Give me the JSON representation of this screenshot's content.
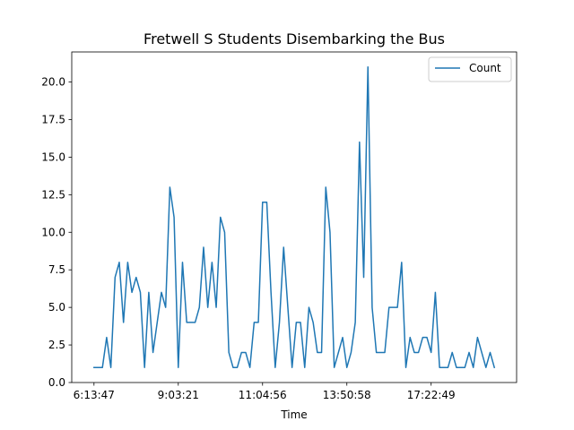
{
  "chart_data": {
    "type": "line",
    "title": "Fretwell S Students Disembarking the Bus",
    "xlabel": "Time",
    "ylabel": "",
    "ylim": [
      0,
      22
    ],
    "yticks": [
      0.0,
      2.5,
      5.0,
      7.5,
      10.0,
      12.5,
      15.0,
      17.5,
      20.0
    ],
    "ytick_labels": [
      "0.0",
      "2.5",
      "5.0",
      "7.5",
      "10.0",
      "12.5",
      "15.0",
      "17.5",
      "20.0"
    ],
    "xtick_labels": [
      "6:13:47",
      "9:03:21",
      "11:04:56",
      "13:50:58",
      "17:22:49"
    ],
    "xtick_index": [
      0,
      20,
      40,
      60,
      80
    ],
    "legend_position": "top-right",
    "grid": false,
    "series": [
      {
        "name": "Count",
        "color": "#1f77b4",
        "values": [
          1,
          1,
          1,
          3,
          1,
          7,
          8,
          4,
          8,
          6,
          7,
          6,
          1,
          6,
          2,
          4,
          6,
          5,
          13,
          11,
          1,
          8,
          4,
          4,
          4,
          5,
          9,
          5,
          8,
          5,
          11,
          10,
          2,
          1,
          1,
          2,
          2,
          1,
          4,
          4,
          12,
          12,
          6,
          1,
          4,
          9,
          5,
          1,
          4,
          4,
          1,
          5,
          4,
          2,
          2,
          13,
          10,
          1,
          2,
          3,
          1,
          2,
          4,
          16,
          7,
          21,
          5,
          2,
          2,
          2,
          5,
          5,
          5,
          8,
          1,
          3,
          2,
          2,
          3,
          3,
          2,
          6,
          1,
          1,
          1,
          2,
          1,
          1,
          1,
          2,
          1,
          3,
          2,
          1,
          2,
          1
        ]
      }
    ]
  }
}
